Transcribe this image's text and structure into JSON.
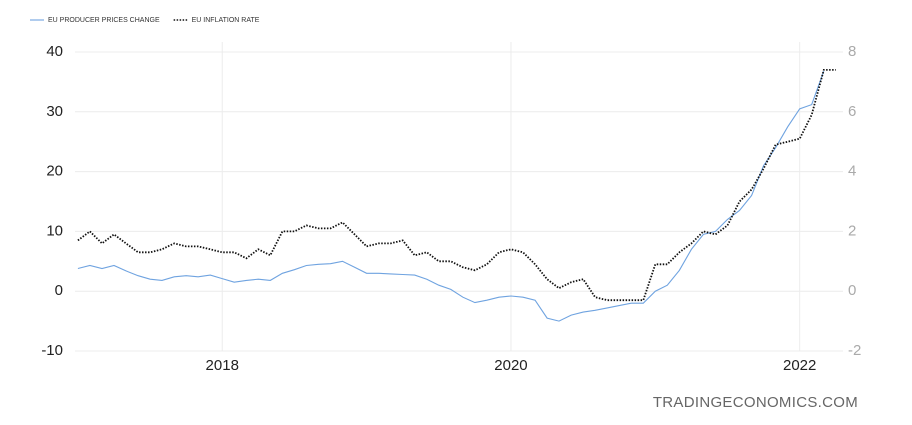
{
  "chart_data": {
    "type": "line",
    "legend": "top-left",
    "x": [
      2017,
      2017.083,
      2017.167,
      2017.25,
      2017.333,
      2017.417,
      2017.5,
      2017.583,
      2017.667,
      2017.75,
      2017.833,
      2017.917,
      2018,
      2018.083,
      2018.167,
      2018.25,
      2018.333,
      2018.417,
      2018.5,
      2018.583,
      2018.667,
      2018.75,
      2018.833,
      2018.917,
      2019,
      2019.083,
      2019.167,
      2019.25,
      2019.333,
      2019.417,
      2019.5,
      2019.583,
      2019.667,
      2019.75,
      2019.833,
      2019.917,
      2020,
      2020.083,
      2020.167,
      2020.25,
      2020.333,
      2020.417,
      2020.5,
      2020.583,
      2020.667,
      2020.75,
      2020.833,
      2020.917,
      2021,
      2021.083,
      2021.167,
      2021.25,
      2021.333,
      2021.417,
      2021.5,
      2021.583,
      2021.667,
      2021.75,
      2021.833,
      2021.917,
      2022,
      2022.083,
      2022.167,
      2022.25
    ],
    "series": [
      {
        "name": "EU PRODUCER PRICES CHANGE",
        "color": "#6fa3e0",
        "dash": false,
        "values": [
          3.8,
          4.3,
          3.8,
          4.3,
          3.4,
          2.6,
          2.0,
          1.8,
          2.4,
          2.6,
          2.4,
          2.7,
          2.1,
          1.5,
          1.8,
          2.0,
          1.8,
          3.0,
          3.6,
          4.3,
          4.5,
          4.6,
          5.0,
          4.0,
          3.0,
          3.0,
          2.9,
          2.8,
          2.7,
          2.0,
          1.0,
          0.3,
          -1.0,
          -1.9,
          -1.5,
          -1.0,
          -0.8,
          -1.0,
          -1.5,
          -4.5,
          -5.0,
          -4.0,
          -3.5,
          -3.2,
          -2.8,
          -2.4,
          -2.0,
          -2.0,
          0.0,
          1.0,
          3.5,
          7.0,
          9.5,
          10.0,
          12.0,
          13.5,
          16.0,
          21.0,
          24.0,
          27.5,
          30.5,
          31.2,
          36.8,
          null
        ]
      },
      {
        "name": "EU INFLATION RATE",
        "color": "#111111",
        "dash": true,
        "axis": "y2",
        "values": [
          1.7,
          2.0,
          1.6,
          1.9,
          1.6,
          1.3,
          1.3,
          1.4,
          1.6,
          1.5,
          1.5,
          1.4,
          1.3,
          1.3,
          1.1,
          1.4,
          1.2,
          2.0,
          2.0,
          2.2,
          2.1,
          2.1,
          2.3,
          1.9,
          1.5,
          1.6,
          1.6,
          1.7,
          1.2,
          1.3,
          1.0,
          1.0,
          0.8,
          0.7,
          0.9,
          1.3,
          1.4,
          1.3,
          0.9,
          0.4,
          0.1,
          0.3,
          0.4,
          -0.2,
          -0.3,
          -0.3,
          -0.3,
          -0.3,
          0.9,
          0.9,
          1.3,
          1.6,
          2.0,
          1.9,
          2.2,
          3.0,
          3.4,
          4.1,
          4.9,
          5.0,
          5.1,
          5.9,
          7.4,
          7.4
        ]
      }
    ],
    "xlim": [
      2016.98,
      2022.3
    ],
    "xticks": [
      2018,
      2020,
      2022
    ],
    "ylim": [
      -10,
      40
    ],
    "yticks": [
      -10,
      0,
      10,
      20,
      30,
      40
    ],
    "y2lim": [
      -2,
      8
    ],
    "y2ticks": [
      -2,
      0,
      2,
      4,
      6,
      8
    ],
    "grid": true,
    "watermark": "TRADINGECONOMICS.COM"
  }
}
